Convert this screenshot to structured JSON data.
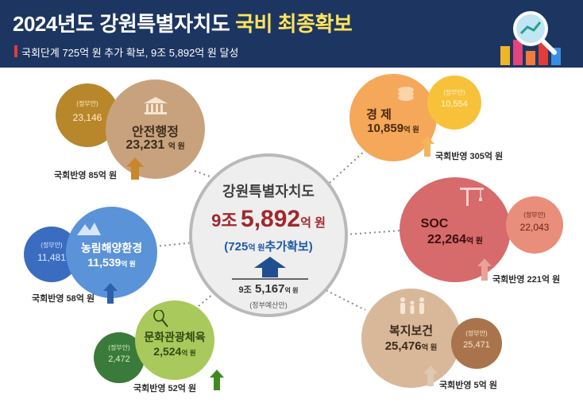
{
  "header": {
    "title_main": "2024년도 강원특별자치도 ",
    "title_highlight": "국비 최종확보",
    "subtitle": "국회단계 725억 원 추가 확보, 9조 5,892억 원 달성"
  },
  "center": {
    "org": "강원특별자치도",
    "total_jo": "9조",
    "total_num": "5,892",
    "total_unit": "억 원",
    "added_num": "(725",
    "added_unit": "억 원",
    "added_label": "추가확보)",
    "gov_jo": "9조",
    "gov_num": "5,167",
    "gov_unit": "억 원",
    "gov_label": "(정부예산안)"
  },
  "unit": "억 원",
  "gov_tag": "(정부안)",
  "sectors": {
    "admin": {
      "name": "안전행정",
      "final": "23,231",
      "gov": "23,146",
      "nat": "국회반영 85억 원",
      "color": "#c8a27d"
    },
    "econ": {
      "name": "경 제",
      "final": "10,859",
      "gov": "10,554",
      "nat": "국회반영 305억 원",
      "color": "#f5a75a"
    },
    "agri": {
      "name": "농림해양환경",
      "final": "11,539",
      "gov": "11,481",
      "nat": "국회반영 58억 원",
      "color": "#5b93d8"
    },
    "soc": {
      "name": "SOC",
      "final": "22,264",
      "gov": "22,043",
      "nat": "국회반영 221억 원",
      "color": "#d76a6a"
    },
    "culture": {
      "name": "문화관광체육",
      "final": "2,524",
      "gov": "2,472",
      "nat": "국회반영 52억 원",
      "color": "#a9c95c"
    },
    "welfare": {
      "name": "복지보건",
      "final": "25,476",
      "gov": "25,471",
      "nat": "국회반영 5억 원",
      "color": "#d9b89a"
    }
  }
}
